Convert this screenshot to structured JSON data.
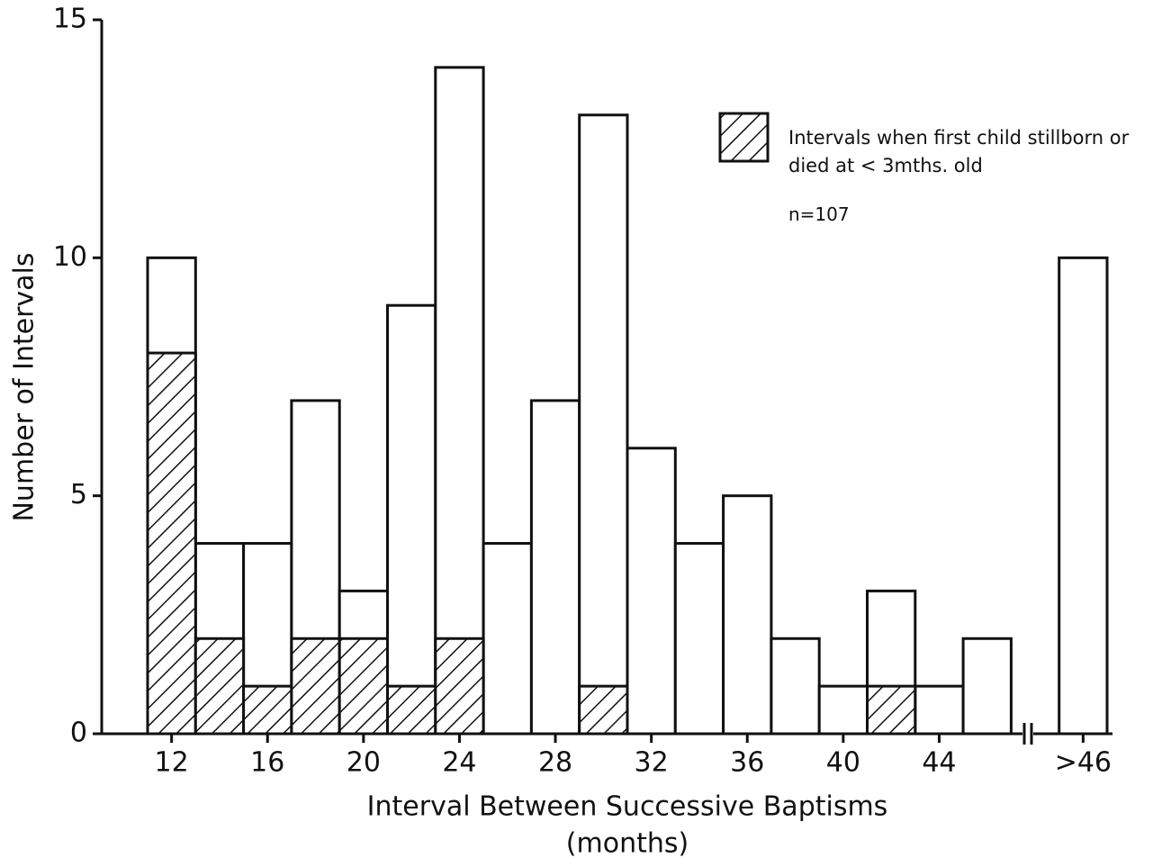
{
  "chart_data": {
    "type": "bar",
    "categories": [
      "12",
      null,
      "16",
      null,
      "20",
      null,
      "24",
      null,
      "28",
      null,
      "32",
      null,
      "36",
      null,
      "40",
      null,
      "44",
      null,
      ">46"
    ],
    "series": [
      {
        "color": "#ffffff",
        "values": [
          10,
          4,
          4,
          7,
          3,
          9,
          14,
          4,
          7,
          13,
          6,
          4,
          5,
          2,
          1,
          3,
          1,
          2,
          10
        ]
      },
      {
        "name": "Intervals when first child stillborn or died at < 3mths. old",
        "color": "#111111",
        "values": [
          8,
          2,
          1,
          2,
          2,
          1,
          2,
          0,
          0,
          1,
          0,
          0,
          0,
          0,
          0,
          1,
          0,
          0,
          0
        ]
      }
    ],
    "annotation": "n=107",
    "ylabel": "Number of Intervals",
    "xlabel": [
      "Interval Between Successive Baptisms",
      "(months)"
    ],
    "ylim": [
      0,
      15
    ],
    "yticks": [
      0,
      5,
      10,
      15
    ]
  }
}
